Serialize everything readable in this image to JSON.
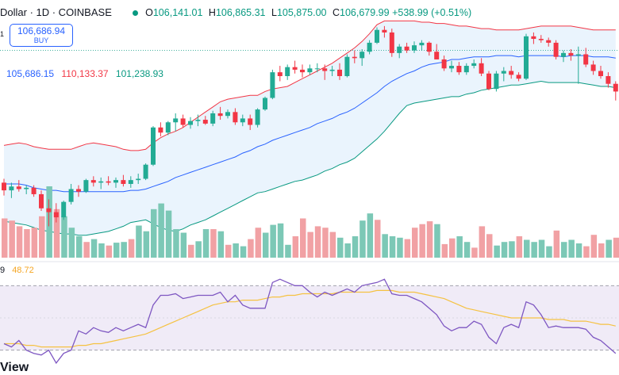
{
  "header": {
    "symbol_text": "Dollar · 1D · COINBASE",
    "open_label": "O",
    "open": "106,141.01",
    "high_label": "H",
    "high": "106,865.31",
    "low_label": "L",
    "low": "105,875.00",
    "close_label": "C",
    "close": "106,679.99",
    "change": "+538.99 (+0.51%)"
  },
  "buy_box": {
    "price": "106,686.94",
    "label": "BUY",
    "quantity": "1"
  },
  "bb_legend": {
    "basis": "105,686.15",
    "upper": "110,133.37",
    "lower": "101,238.93"
  },
  "rsi_legend": {
    "tail": "9",
    "value": "48.72"
  },
  "branding": "View",
  "colors": {
    "up": "#22ab94",
    "down": "#f23645",
    "up_vol": "#7cc8b6",
    "down_vol": "#f1a1a4",
    "basis": "#2962ff",
    "upper_band": "#f23645",
    "lower_band": "#089981",
    "band_fill": "#e3f0fc",
    "rsi_line": "#7e57c2",
    "rsi_ma": "#f5c242",
    "rsi_fill": "#ede7f6",
    "accent": "#2962ff"
  },
  "chart_data": {
    "type": "candlestick",
    "price_range": [
      96500,
      113300
    ],
    "candles": [
      [
        100800,
        101100,
        99800,
        100200
      ],
      [
        100200,
        100800,
        99600,
        100500
      ],
      [
        100500,
        101000,
        100100,
        100300
      ],
      [
        100300,
        100600,
        99900,
        100400
      ],
      [
        100400,
        100600,
        99700,
        99900
      ],
      [
        99900,
        100200,
        98600,
        98800
      ],
      [
        98800,
        99500,
        97400,
        98500
      ],
      [
        98500,
        99200,
        97700,
        98100
      ],
      [
        98100,
        99400,
        97900,
        99300
      ],
      [
        99300,
        100700,
        99100,
        100300
      ],
      [
        100300,
        100600,
        99700,
        100100
      ],
      [
        100100,
        101100,
        100000,
        101000
      ],
      [
        101000,
        101300,
        100500,
        100800
      ],
      [
        100800,
        101200,
        100300,
        100900
      ],
      [
        100900,
        101300,
        100600,
        100800
      ],
      [
        100800,
        101200,
        100400,
        101000
      ],
      [
        101000,
        101400,
        100500,
        100700
      ],
      [
        100700,
        101300,
        100400,
        101000
      ],
      [
        101000,
        101500,
        100700,
        101100
      ],
      [
        101100,
        102300,
        101000,
        102200
      ],
      [
        102200,
        105200,
        102100,
        105100
      ],
      [
        105100,
        105500,
        104400,
        104700
      ],
      [
        104700,
        105600,
        104500,
        105500
      ],
      [
        105500,
        106200,
        104800,
        105800
      ],
      [
        105800,
        106100,
        105100,
        105300
      ],
      [
        105300,
        105900,
        105000,
        105600
      ],
      [
        105600,
        106100,
        105200,
        105700
      ],
      [
        105700,
        106000,
        105300,
        105400
      ],
      [
        105400,
        106400,
        105200,
        106200
      ],
      [
        106200,
        106700,
        105700,
        106000
      ],
      [
        106000,
        106500,
        105800,
        106300
      ],
      [
        106300,
        106600,
        105300,
        105500
      ],
      [
        105500,
        106100,
        105200,
        105800
      ],
      [
        105800,
        106100,
        104900,
        105300
      ],
      [
        105300,
        106600,
        105100,
        106500
      ],
      [
        106500,
        107500,
        106400,
        107400
      ],
      [
        107400,
        109600,
        107300,
        109400
      ],
      [
        109400,
        109900,
        108700,
        109100
      ],
      [
        109100,
        110000,
        108800,
        109800
      ],
      [
        109800,
        110300,
        109300,
        109600
      ],
      [
        109600,
        110000,
        109000,
        109400
      ],
      [
        109400,
        110000,
        109200,
        109700
      ],
      [
        109700,
        110100,
        109400,
        109700
      ],
      [
        109700,
        110000,
        108800,
        109500
      ],
      [
        109500,
        109900,
        109100,
        109600
      ],
      [
        109600,
        110100,
        108800,
        109100
      ],
      [
        109100,
        110800,
        109000,
        110600
      ],
      [
        110600,
        111100,
        110100,
        110500
      ],
      [
        110500,
        111200,
        109900,
        111000
      ],
      [
        111000,
        111900,
        110800,
        111700
      ],
      [
        111700,
        112900,
        111600,
        112700
      ],
      [
        112700,
        113000,
        112100,
        112500
      ],
      [
        112500,
        112800,
        110600,
        110900
      ],
      [
        110900,
        111600,
        110500,
        111400
      ],
      [
        111400,
        111700,
        110900,
        111100
      ],
      [
        111100,
        111800,
        110900,
        111500
      ],
      [
        111500,
        111900,
        111100,
        111700
      ],
      [
        111700,
        111800,
        110700,
        111000
      ],
      [
        111000,
        111600,
        110400,
        110400
      ],
      [
        110400,
        110700,
        109500,
        109700
      ],
      [
        109700,
        110300,
        109400,
        109900
      ],
      [
        109900,
        110200,
        109200,
        109400
      ],
      [
        109400,
        110100,
        109200,
        109900
      ],
      [
        109900,
        110400,
        109700,
        110100
      ],
      [
        110100,
        110500,
        109100,
        109300
      ],
      [
        109300,
        109500,
        108000,
        108100
      ],
      [
        108100,
        109500,
        107900,
        109300
      ],
      [
        109300,
        109800,
        108700,
        109500
      ],
      [
        109500,
        109900,
        108900,
        109200
      ],
      [
        109200,
        109400,
        108700,
        108900
      ],
      [
        108900,
        112400,
        108800,
        112200
      ],
      [
        112200,
        112500,
        111600,
        112000
      ],
      [
        112000,
        112300,
        111700,
        111900
      ],
      [
        111900,
        112100,
        111400,
        111700
      ],
      [
        111700,
        111900,
        110400,
        110600
      ],
      [
        110600,
        111100,
        110200,
        110900
      ],
      [
        110900,
        111200,
        110300,
        110700
      ],
      [
        110700,
        111400,
        108500,
        110800
      ],
      [
        110800,
        111300,
        109800,
        110000
      ],
      [
        110000,
        110300,
        109200,
        109500
      ],
      [
        109500,
        109900,
        108900,
        109100
      ],
      [
        109100,
        109400,
        108200,
        108500
      ],
      [
        108500,
        108700,
        107200,
        107900
      ]
    ],
    "bands": {
      "upper": [
        103700,
        103800,
        103900,
        103800,
        103600,
        103500,
        103400,
        103400,
        103400,
        103400,
        103600,
        103800,
        103900,
        103800,
        103700,
        103600,
        103400,
        103300,
        103300,
        103400,
        103900,
        104300,
        104600,
        104800,
        105100,
        105500,
        105900,
        106300,
        106700,
        107100,
        107300,
        107400,
        107500,
        107600,
        107600,
        107900,
        108100,
        108200,
        108300,
        108600,
        108900,
        109200,
        109500,
        109800,
        110100,
        110500,
        110900,
        111300,
        111800,
        112400,
        113100,
        113400,
        113400,
        113400,
        113400,
        113400,
        113300,
        113300,
        113200,
        113200,
        113100,
        113000,
        113000,
        112900,
        112800,
        112800,
        112700,
        112700,
        112700,
        112700,
        112800,
        112900,
        113000,
        113000,
        113000,
        113000,
        113000,
        112900,
        112800,
        112700,
        112700,
        112700,
        112700
      ],
      "basis": [
        100700,
        100700,
        100700,
        100600,
        100400,
        100300,
        100200,
        100200,
        100100,
        100100,
        100100,
        100100,
        100100,
        100100,
        100100,
        100100,
        100100,
        100200,
        100200,
        100300,
        100500,
        100700,
        100900,
        101200,
        101400,
        101600,
        101800,
        102000,
        102200,
        102400,
        102600,
        102800,
        103100,
        103300,
        103600,
        103800,
        104100,
        104300,
        104500,
        104700,
        104900,
        105100,
        105400,
        105600,
        105800,
        106100,
        106300,
        106600,
        107000,
        107400,
        107800,
        108300,
        108700,
        109000,
        109300,
        109500,
        109800,
        110000,
        110100,
        110200,
        110400,
        110400,
        110500,
        110600,
        110600,
        110600,
        110700,
        110700,
        110700,
        110600,
        110700,
        110700,
        110700,
        110700,
        110700,
        110600,
        110700,
        110700,
        110700,
        110600,
        110600,
        110600,
        110500
      ],
      "lower": [
        97800,
        97700,
        97600,
        97500,
        97300,
        97100,
        97000,
        96900,
        96800,
        96800,
        96700,
        96700,
        96800,
        96900,
        97000,
        97200,
        97400,
        97700,
        97800,
        97900,
        97600,
        97300,
        97100,
        97000,
        97200,
        97500,
        97700,
        97900,
        98200,
        98500,
        98800,
        99100,
        99400,
        99700,
        100000,
        100100,
        100300,
        100500,
        100700,
        100900,
        101000,
        101200,
        101400,
        101700,
        101900,
        102200,
        102400,
        102700,
        103200,
        103700,
        104200,
        104800,
        105500,
        106200,
        106800,
        107000,
        107100,
        107200,
        107300,
        107400,
        107500,
        107500,
        107700,
        107800,
        108000,
        108100,
        108200,
        108300,
        108400,
        108400,
        108500,
        108600,
        108700,
        108600,
        108600,
        108600,
        108600,
        108600,
        108500,
        108400,
        108300,
        108300,
        108200
      ]
    },
    "volume": [
      [
        55,
        "down"
      ],
      [
        52,
        "down"
      ],
      [
        44,
        "down"
      ],
      [
        40,
        "down"
      ],
      [
        42,
        "down"
      ],
      [
        58,
        "down"
      ],
      [
        100,
        "up"
      ],
      [
        68,
        "down"
      ],
      [
        58,
        "up"
      ],
      [
        42,
        "up"
      ],
      [
        30,
        "up"
      ],
      [
        22,
        "down"
      ],
      [
        26,
        "up"
      ],
      [
        20,
        "up"
      ],
      [
        17,
        "down"
      ],
      [
        21,
        "up"
      ],
      [
        22,
        "up"
      ],
      [
        26,
        "down"
      ],
      [
        45,
        "up"
      ],
      [
        37,
        "up"
      ],
      [
        68,
        "up"
      ],
      [
        76,
        "up"
      ],
      [
        66,
        "up"
      ],
      [
        40,
        "up"
      ],
      [
        35,
        "up"
      ],
      [
        18,
        "down"
      ],
      [
        23,
        "up"
      ],
      [
        40,
        "up"
      ],
      [
        40,
        "down"
      ],
      [
        37,
        "up"
      ],
      [
        18,
        "down"
      ],
      [
        20,
        "up"
      ],
      [
        16,
        "up"
      ],
      [
        26,
        "down"
      ],
      [
        42,
        "down"
      ],
      [
        35,
        "up"
      ],
      [
        46,
        "up"
      ],
      [
        48,
        "up"
      ],
      [
        18,
        "up"
      ],
      [
        30,
        "down"
      ],
      [
        55,
        "down"
      ],
      [
        36,
        "down"
      ],
      [
        44,
        "down"
      ],
      [
        42,
        "down"
      ],
      [
        36,
        "down"
      ],
      [
        28,
        "up"
      ],
      [
        20,
        "up"
      ],
      [
        30,
        "up"
      ],
      [
        52,
        "up"
      ],
      [
        62,
        "up"
      ],
      [
        53,
        "down"
      ],
      [
        33,
        "up"
      ],
      [
        30,
        "up"
      ],
      [
        28,
        "up"
      ],
      [
        26,
        "down"
      ],
      [
        42,
        "down"
      ],
      [
        47,
        "down"
      ],
      [
        51,
        "down"
      ],
      [
        47,
        "up"
      ],
      [
        19,
        "down"
      ],
      [
        27,
        "down"
      ],
      [
        30,
        "up"
      ],
      [
        22,
        "up"
      ],
      [
        14,
        "down"
      ],
      [
        44,
        "down"
      ],
      [
        33,
        "down"
      ],
      [
        17,
        "up"
      ],
      [
        22,
        "up"
      ],
      [
        23,
        "up"
      ],
      [
        30,
        "down"
      ],
      [
        25,
        "up"
      ],
      [
        22,
        "up"
      ],
      [
        25,
        "up"
      ],
      [
        16,
        "up"
      ],
      [
        38,
        "down"
      ],
      [
        22,
        "up"
      ],
      [
        25,
        "up"
      ],
      [
        20,
        "up"
      ],
      [
        16,
        "down"
      ],
      [
        32,
        "down"
      ],
      [
        20,
        "down"
      ],
      [
        25,
        "up"
      ],
      [
        28,
        "down"
      ]
    ],
    "rsi_range": [
      20,
      80
    ],
    "rsi_levels": [
      70,
      30
    ],
    "rsi": [
      34,
      32,
      36,
      30,
      28,
      27,
      30,
      22,
      28,
      30,
      42,
      40,
      44,
      42,
      41,
      44,
      42,
      44,
      46,
      44,
      58,
      64,
      64,
      65,
      62,
      63,
      64,
      64,
      64,
      66,
      60,
      64,
      58,
      56,
      56,
      56,
      72,
      74,
      72,
      70,
      70,
      66,
      63,
      66,
      64,
      66,
      68,
      66,
      70,
      71,
      72,
      74,
      65,
      64,
      64,
      62,
      60,
      56,
      52,
      45,
      42,
      44,
      44,
      48,
      46,
      38,
      34,
      44,
      46,
      44,
      60,
      58,
      52,
      44,
      45,
      44,
      44,
      44,
      43,
      38,
      36,
      32,
      28
    ],
    "rsi_ma": [
      34,
      34,
      34,
      33,
      33,
      32,
      32,
      32,
      32,
      32,
      33,
      33,
      34,
      34,
      35,
      36,
      37,
      38,
      39,
      40,
      42,
      44,
      46,
      48,
      50,
      52,
      54,
      56,
      58,
      59,
      60,
      60,
      61,
      61,
      61,
      62,
      63,
      63,
      64,
      64,
      65,
      65,
      65,
      65,
      65,
      66,
      66,
      66,
      66,
      66,
      67,
      67,
      67,
      66,
      66,
      66,
      65,
      64,
      63,
      62,
      60,
      58,
      56,
      55,
      54,
      53,
      52,
      51,
      50,
      50,
      50,
      50,
      50,
      49,
      49,
      49,
      48,
      48,
      48,
      47,
      46,
      46,
      45
    ]
  }
}
